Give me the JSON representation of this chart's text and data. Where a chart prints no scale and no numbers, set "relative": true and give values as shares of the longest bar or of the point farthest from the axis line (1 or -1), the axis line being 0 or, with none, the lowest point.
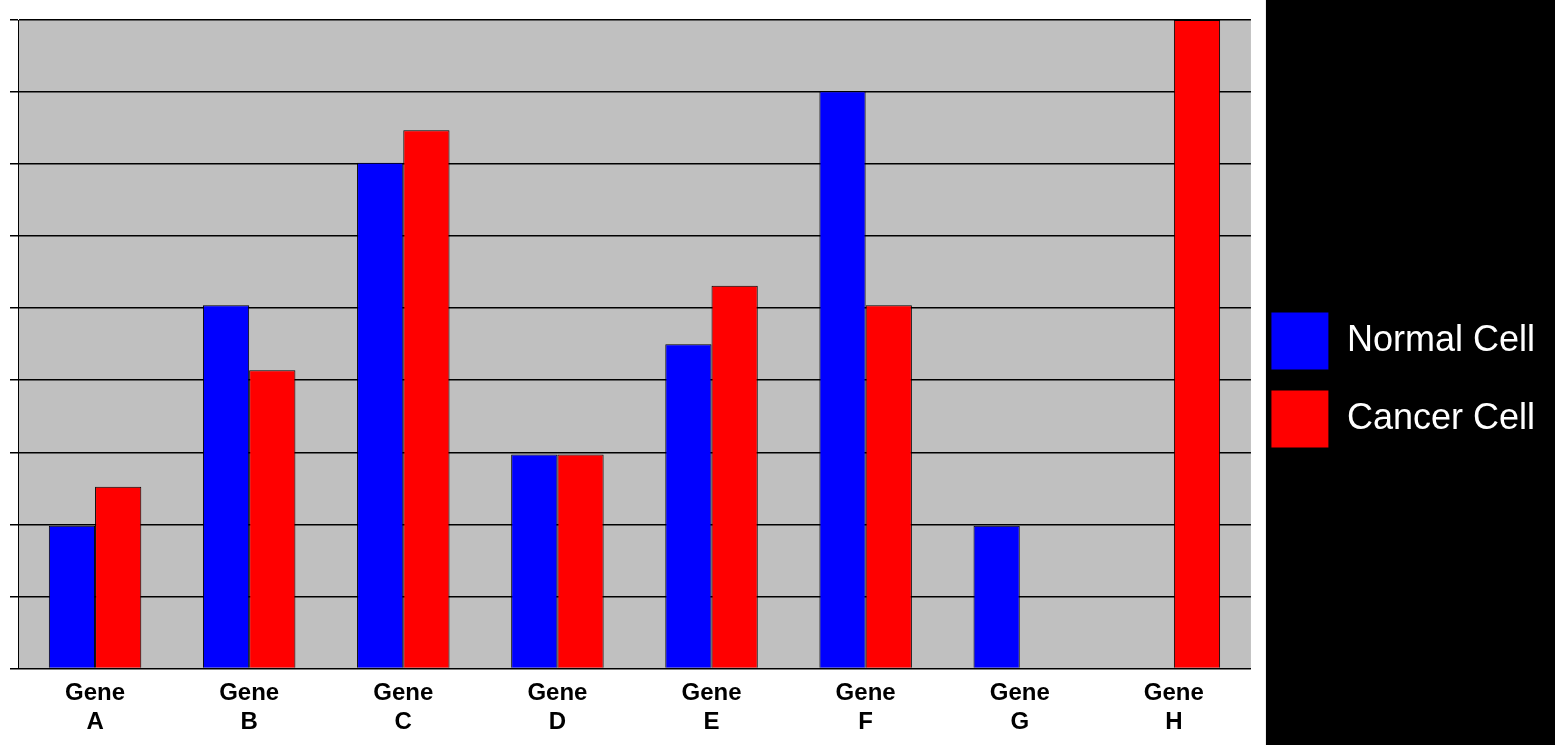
{
  "chart_data": {
    "type": "bar",
    "relative": true,
    "categories": [
      "Gene A",
      "Gene B",
      "Gene C",
      "Gene D",
      "Gene E",
      "Gene F",
      "Gene G",
      "Gene H"
    ],
    "series": [
      {
        "name": "Normal Cell",
        "color": "#0000ff",
        "values": [
          0.22,
          0.56,
          0.78,
          0.33,
          0.5,
          0.89,
          0.22,
          0
        ]
      },
      {
        "name": "Cancer Cell",
        "color": "#ff0000",
        "values": [
          0.28,
          0.46,
          0.83,
          0.33,
          0.59,
          0.56,
          0,
          1
        ]
      }
    ],
    "grid": "y",
    "legend": "right"
  }
}
